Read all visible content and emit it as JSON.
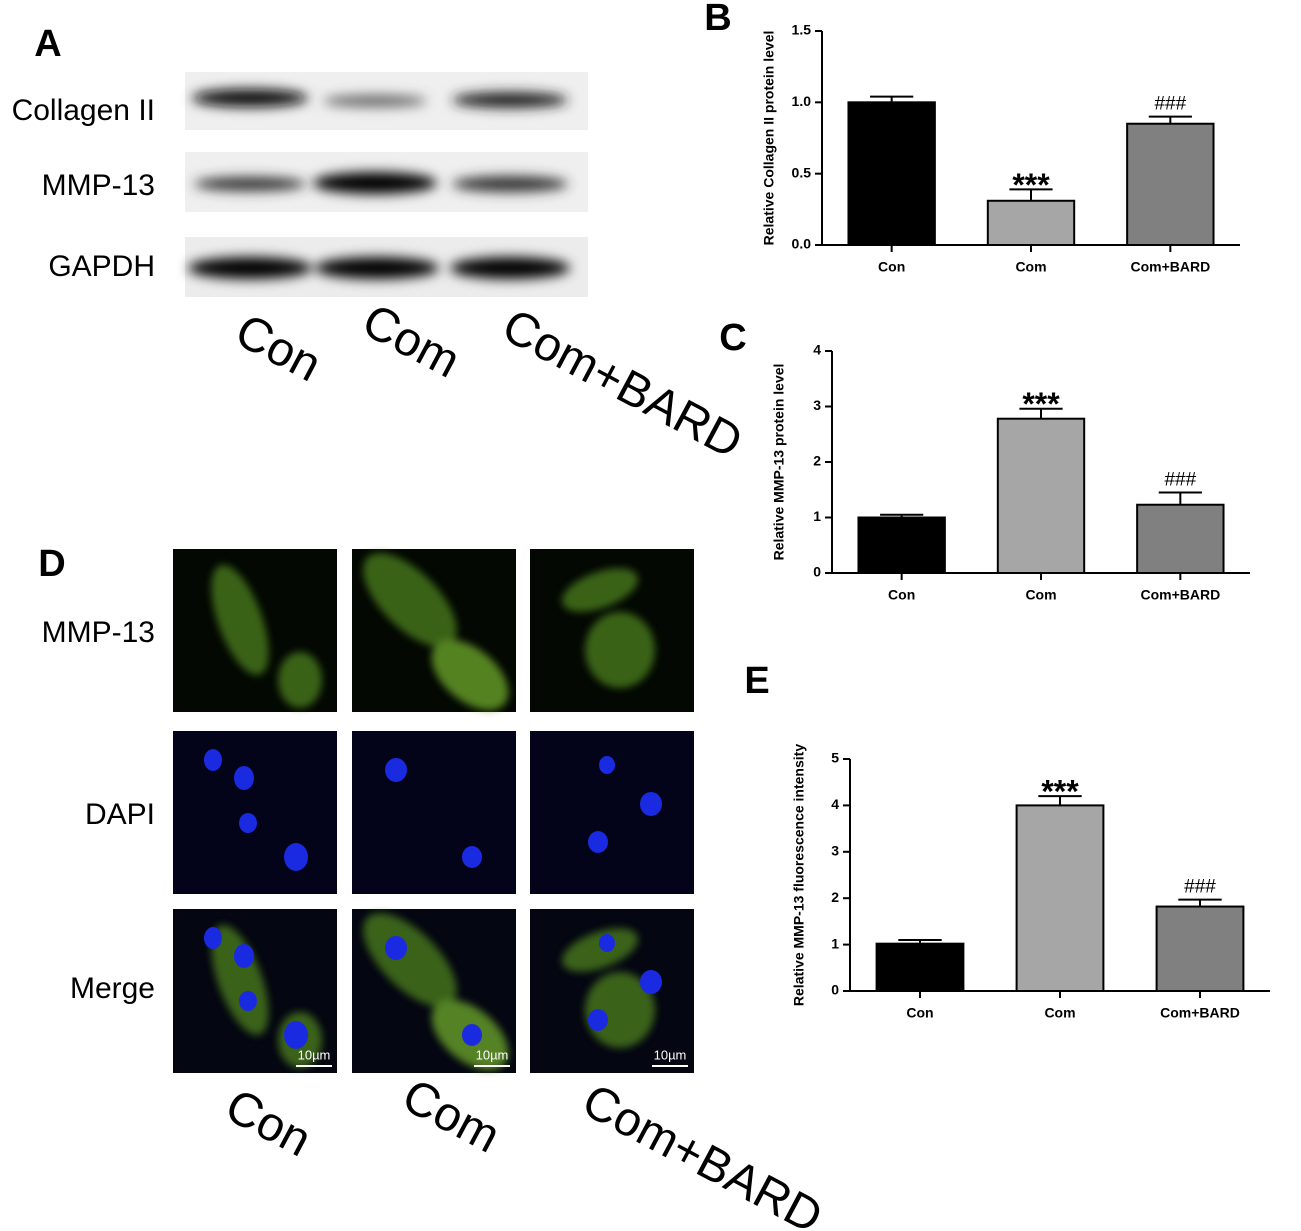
{
  "blot": {
    "label": "A",
    "rows": [
      "Collagen II",
      "MMP-13",
      "GAPDH"
    ],
    "columns": [
      "Con",
      "Com",
      "Com+BARD"
    ]
  },
  "microscopy": {
    "label": "D",
    "rows": [
      "MMP-13",
      "DAPI",
      "Merge"
    ],
    "columns": [
      "Con",
      "Com",
      "Com+BARD"
    ],
    "scale_bar": "10µm"
  },
  "chart_data": [
    {
      "type": "bar",
      "label": "B",
      "y_label": "Relative Collagen II protein level",
      "categories": [
        "Con",
        "Com",
        "Com+BARD"
      ],
      "values": [
        1.0,
        0.31,
        0.85
      ],
      "errors": [
        0.04,
        0.08,
        0.05
      ],
      "colors": [
        "#000000",
        "#a6a6a6",
        "#808080"
      ],
      "annotations": [
        null,
        "***",
        "###"
      ],
      "ylim": [
        0,
        1.5
      ],
      "yticks": [
        {
          "value": 0,
          "label": "0.0"
        },
        0.5,
        {
          "value": 1,
          "label": "1.0"
        },
        1.5
      ]
    },
    {
      "type": "bar",
      "label": "C",
      "y_label": "Relative MMP-13 protein level",
      "categories": [
        "Con",
        "Com",
        "Com+BARD"
      ],
      "values": [
        1.0,
        2.78,
        1.23
      ],
      "errors": [
        0.05,
        0.18,
        0.22
      ],
      "colors": [
        "#000000",
        "#a6a6a6",
        "#808080"
      ],
      "annotations": [
        null,
        "***",
        "###"
      ],
      "ylim": [
        0,
        4
      ],
      "yticks": [
        0,
        1,
        2,
        3,
        4
      ]
    },
    {
      "type": "bar",
      "label": "E",
      "y_label": "Relative MMP-13 fluorescence intensity",
      "categories": [
        "Con",
        "Com",
        "Com+BARD"
      ],
      "values": [
        1.02,
        4.0,
        1.82
      ],
      "errors": [
        0.08,
        0.2,
        0.15
      ],
      "colors": [
        "#000000",
        "#a6a6a6",
        "#808080"
      ],
      "annotations": [
        null,
        "***",
        "###"
      ],
      "ylim": [
        0,
        5
      ],
      "yticks": [
        0,
        1,
        2,
        3,
        4,
        5
      ]
    }
  ]
}
